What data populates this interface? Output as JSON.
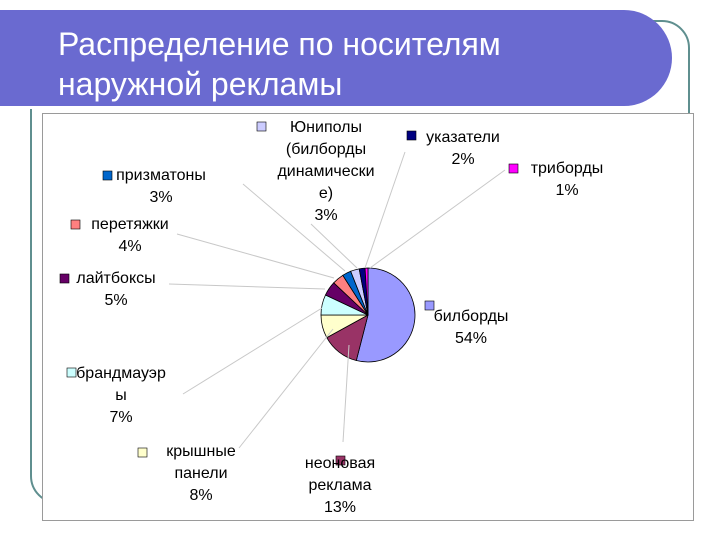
{
  "slide": {
    "title_line1": "Распределение по носителям",
    "title_line2": "наружной рекламы"
  },
  "chart_data": {
    "type": "pie",
    "title": "",
    "slices": [
      {
        "name_lines": [
          "билборды"
        ],
        "value": 54,
        "label": "54%",
        "color": "#9999ff"
      },
      {
        "name_lines": [
          "неоновая",
          "реклама"
        ],
        "value": 13,
        "label": "13%",
        "color": "#993366"
      },
      {
        "name_lines": [
          "крышные",
          "панели"
        ],
        "value": 8,
        "label": "8%",
        "color": "#ffffcc"
      },
      {
        "name_lines": [
          "брандмауэр",
          "ы"
        ],
        "value": 7,
        "label": "7%",
        "color": "#ccffff"
      },
      {
        "name_lines": [
          "лайтбоксы"
        ],
        "value": 5,
        "label": "5%",
        "color": "#660066"
      },
      {
        "name_lines": [
          "перетяжки"
        ],
        "value": 4,
        "label": "4%",
        "color": "#ff8080"
      },
      {
        "name_lines": [
          "призматоны"
        ],
        "value": 3,
        "label": "3%",
        "color": "#0066cc"
      },
      {
        "name_lines": [
          "Юниполы",
          "(билборды",
          "динамически",
          "е)"
        ],
        "value": 3,
        "label": "3%",
        "color": "#ccccff"
      },
      {
        "name_lines": [
          "указатели"
        ],
        "value": 2,
        "label": "2%",
        "color": "#000080"
      },
      {
        "name_lines": [
          "триборды"
        ],
        "value": 1,
        "label": "1%",
        "color": "#ff00ff"
      }
    ]
  }
}
